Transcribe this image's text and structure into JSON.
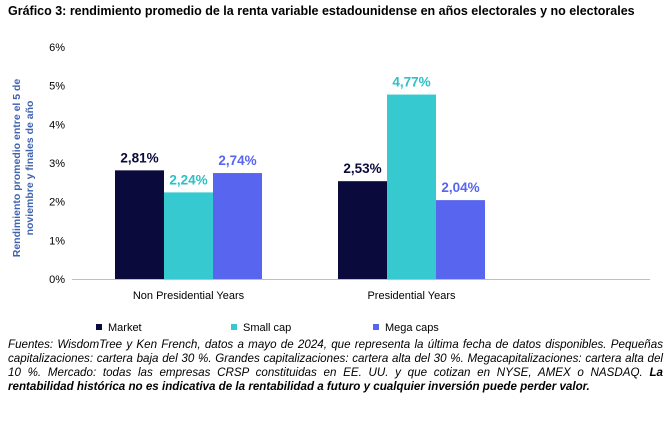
{
  "title": "Gráfico 3: rendimiento promedio de la renta variable estadounidense en años electorales y no electorales",
  "chart_data": {
    "type": "bar",
    "categories": [
      "Non Presidential Years",
      "Presidential Years"
    ],
    "series": [
      {
        "name": "Market",
        "values": [
          2.81,
          2.53
        ],
        "labels": [
          "2,81%",
          "2,53%"
        ],
        "color": "#0b0a3d",
        "label_color": "#0b0a3d"
      },
      {
        "name": "Small cap",
        "values": [
          2.24,
          4.77
        ],
        "labels": [
          "2,24%",
          "4,77%"
        ],
        "color": "#36c9d0",
        "label_color": "#2cc0c7"
      },
      {
        "name": "Mega caps",
        "values": [
          2.74,
          2.04
        ],
        "labels": [
          "2,74%",
          "2,04%"
        ],
        "color": "#5865ef",
        "label_color": "#5865ef"
      }
    ],
    "ylabel": "Rendimiento promedio entre el 5 de noviembre y finales de año",
    "ylabel_lines": [
      "Rendimiento promedio entre el 5 de",
      "noviembre y finales de año"
    ],
    "ylabel_color": "#3f62b0",
    "ylim": [
      0,
      6
    ],
    "yticks": [
      0,
      1,
      2,
      3,
      4,
      5,
      6
    ],
    "ytick_labels": [
      "0%",
      "1%",
      "2%",
      "3%",
      "4%",
      "5%",
      "6%"
    ],
    "legend_position": "bottom",
    "grid": false
  },
  "source": {
    "text": "Fuentes: WisdomTree y Ken French, datos a mayo de 2024, que representa la última fecha de datos disponibles. Pequeñas capitalizaciones: cartera baja del 30 %. Grandes capitalizaciones: cartera alta del 30 %. Megacapitalizaciones: cartera alta del 10 %. Mercado: todas las empresas CRSP constituidas en EE. UU. y que cotizan en NYSE, AMEX o NASDAQ.",
    "disclaimer": "La rentabilidad histórica no es indicativa de la rentabilidad a futuro y cualquier inversión puede perder valor."
  }
}
